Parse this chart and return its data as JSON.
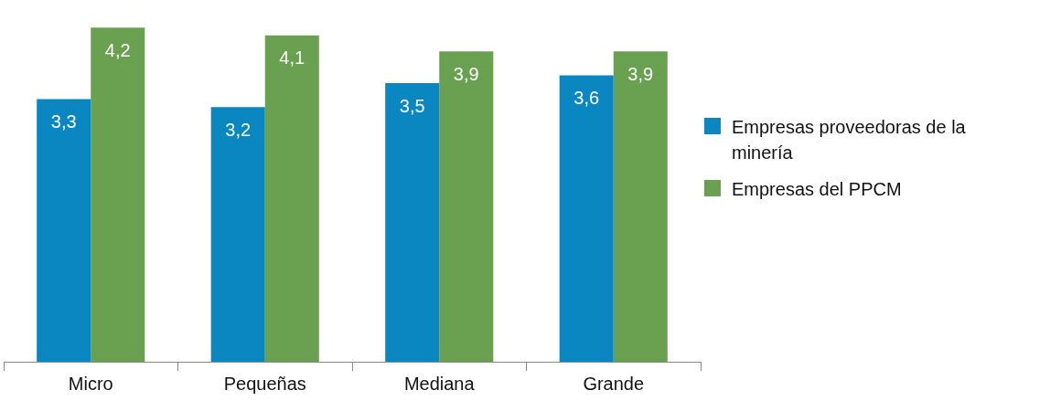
{
  "chart_data": {
    "type": "bar",
    "categories": [
      "Micro",
      "Pequeñas",
      "Mediana",
      "Grande"
    ],
    "series": [
      {
        "name": "Empresas proveedoras de la minería",
        "color": "#0a87c1",
        "values": [
          3.3,
          3.2,
          3.5,
          3.6
        ],
        "value_labels": [
          "3,3",
          "3,2",
          "3,5",
          "3,6"
        ]
      },
      {
        "name": "Empresas del PPCM",
        "color": "#69a150",
        "values": [
          4.2,
          4.1,
          3.9,
          3.9
        ],
        "value_labels": [
          "4,2",
          "4,1",
          "3,9",
          "3,9"
        ]
      }
    ],
    "grid": false,
    "legend": "right"
  }
}
